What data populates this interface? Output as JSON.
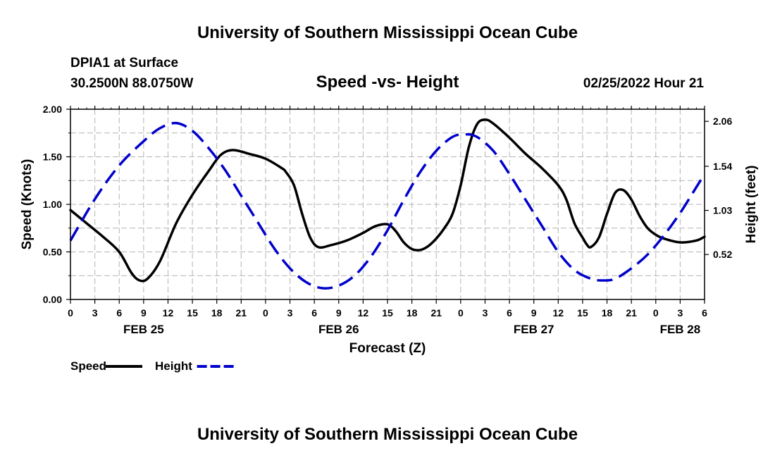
{
  "header": {
    "title_top": "University of Southern Mississippi Ocean Cube",
    "title_bottom": "University of Southern Mississippi Ocean Cube",
    "station": "DPIA1 at Surface",
    "coords": "30.2500N  88.0750W",
    "plot_title": "Speed -vs- Height",
    "datetime": "02/25/2022 Hour 21"
  },
  "chart_data": {
    "type": "line",
    "title": "Speed -vs- Height",
    "xlabel": "Forecast (Z)",
    "ylabel_left": "Speed (Knots)",
    "ylabel_right": "Height (feet)",
    "x_unit": "forecast hour from FEB 25 00Z",
    "xlim": [
      0,
      78
    ],
    "ylim_left": [
      0,
      2.0
    ],
    "ylim_right": [
      0,
      2.2
    ],
    "grid": true,
    "x_ticks": [
      0,
      3,
      6,
      9,
      12,
      15,
      18,
      21,
      24,
      27,
      30,
      33,
      36,
      39,
      42,
      45,
      48,
      51,
      54,
      57,
      60,
      63,
      66,
      69,
      72,
      75,
      78
    ],
    "x_tick_labels": [
      "0",
      "3",
      "6",
      "9",
      "12",
      "15",
      "18",
      "21",
      "0",
      "3",
      "6",
      "9",
      "12",
      "15",
      "18",
      "21",
      "0",
      "3",
      "6",
      "9",
      "12",
      "15",
      "18",
      "21",
      "0",
      "3",
      "6"
    ],
    "left_ticks": [
      0,
      0.5,
      1.0,
      1.5,
      2.0
    ],
    "left_tick_labels": [
      "0.00",
      "0.50",
      "1.00",
      "1.50",
      "2.00"
    ],
    "right_ticks": [
      0.52,
      1.03,
      1.54,
      2.06
    ],
    "right_tick_labels": [
      "0.52",
      "1.03",
      "1.54",
      "2.06"
    ],
    "date_labels": [
      {
        "x": 9,
        "label": "FEB 25"
      },
      {
        "x": 33,
        "label": "FEB 26"
      },
      {
        "x": 57,
        "label": "FEB 27"
      },
      {
        "x": 75,
        "label": "FEB 28"
      }
    ],
    "legend_position": "bottom-left",
    "series": [
      {
        "name": "Speed",
        "axis": "left",
        "color": "#000000",
        "dash": "solid",
        "points": [
          [
            0,
            0.94
          ],
          [
            2,
            0.8
          ],
          [
            4,
            0.66
          ],
          [
            6,
            0.5
          ],
          [
            7.5,
            0.28
          ],
          [
            8.5,
            0.2
          ],
          [
            9.5,
            0.22
          ],
          [
            11,
            0.4
          ],
          [
            13,
            0.8
          ],
          [
            15,
            1.1
          ],
          [
            17,
            1.35
          ],
          [
            18.5,
            1.52
          ],
          [
            20,
            1.57
          ],
          [
            22,
            1.53
          ],
          [
            24,
            1.48
          ],
          [
            26,
            1.38
          ],
          [
            26.5,
            1.34
          ],
          [
            27.5,
            1.2
          ],
          [
            28.5,
            0.9
          ],
          [
            29.5,
            0.65
          ],
          [
            30.5,
            0.55
          ],
          [
            32,
            0.57
          ],
          [
            34,
            0.62
          ],
          [
            36,
            0.7
          ],
          [
            37.5,
            0.77
          ],
          [
            39,
            0.79
          ],
          [
            40,
            0.72
          ],
          [
            41,
            0.6
          ],
          [
            42,
            0.53
          ],
          [
            43,
            0.52
          ],
          [
            44,
            0.56
          ],
          [
            45,
            0.64
          ],
          [
            46,
            0.75
          ],
          [
            47,
            0.9
          ],
          [
            48,
            1.2
          ],
          [
            49,
            1.6
          ],
          [
            50,
            1.84
          ],
          [
            51,
            1.89
          ],
          [
            52,
            1.85
          ],
          [
            54,
            1.7
          ],
          [
            56,
            1.53
          ],
          [
            58,
            1.38
          ],
          [
            60,
            1.2
          ],
          [
            61,
            1.05
          ],
          [
            62,
            0.8
          ],
          [
            63,
            0.65
          ],
          [
            63.5,
            0.58
          ],
          [
            64,
            0.55
          ],
          [
            65,
            0.65
          ],
          [
            66,
            0.9
          ],
          [
            67,
            1.12
          ],
          [
            68,
            1.15
          ],
          [
            69,
            1.05
          ],
          [
            70,
            0.88
          ],
          [
            71,
            0.75
          ],
          [
            72,
            0.68
          ],
          [
            73,
            0.64
          ],
          [
            75,
            0.6
          ],
          [
            77,
            0.62
          ],
          [
            78,
            0.66
          ]
        ]
      },
      {
        "name": "Height",
        "axis": "right",
        "color": "#0000cc",
        "dash": "dashed",
        "points": [
          [
            0,
            0.68
          ],
          [
            3,
            1.16
          ],
          [
            6,
            1.55
          ],
          [
            9,
            1.83
          ],
          [
            11,
            1.98
          ],
          [
            13,
            2.04
          ],
          [
            15,
            1.95
          ],
          [
            17,
            1.75
          ],
          [
            19,
            1.5
          ],
          [
            21,
            1.2
          ],
          [
            23,
            0.9
          ],
          [
            25,
            0.6
          ],
          [
            27,
            0.36
          ],
          [
            29,
            0.2
          ],
          [
            31,
            0.13
          ],
          [
            33,
            0.16
          ],
          [
            35,
            0.28
          ],
          [
            37,
            0.5
          ],
          [
            39,
            0.8
          ],
          [
            41,
            1.15
          ],
          [
            43,
            1.47
          ],
          [
            45,
            1.72
          ],
          [
            47,
            1.88
          ],
          [
            48.5,
            1.91
          ],
          [
            50,
            1.88
          ],
          [
            52,
            1.72
          ],
          [
            54,
            1.45
          ],
          [
            56,
            1.15
          ],
          [
            58,
            0.85
          ],
          [
            60,
            0.55
          ],
          [
            62,
            0.34
          ],
          [
            64,
            0.24
          ],
          [
            65.5,
            0.22
          ],
          [
            67,
            0.24
          ],
          [
            69,
            0.36
          ],
          [
            71,
            0.52
          ],
          [
            73,
            0.74
          ],
          [
            75,
            1.0
          ],
          [
            77,
            1.3
          ],
          [
            78,
            1.45
          ]
        ]
      }
    ]
  }
}
